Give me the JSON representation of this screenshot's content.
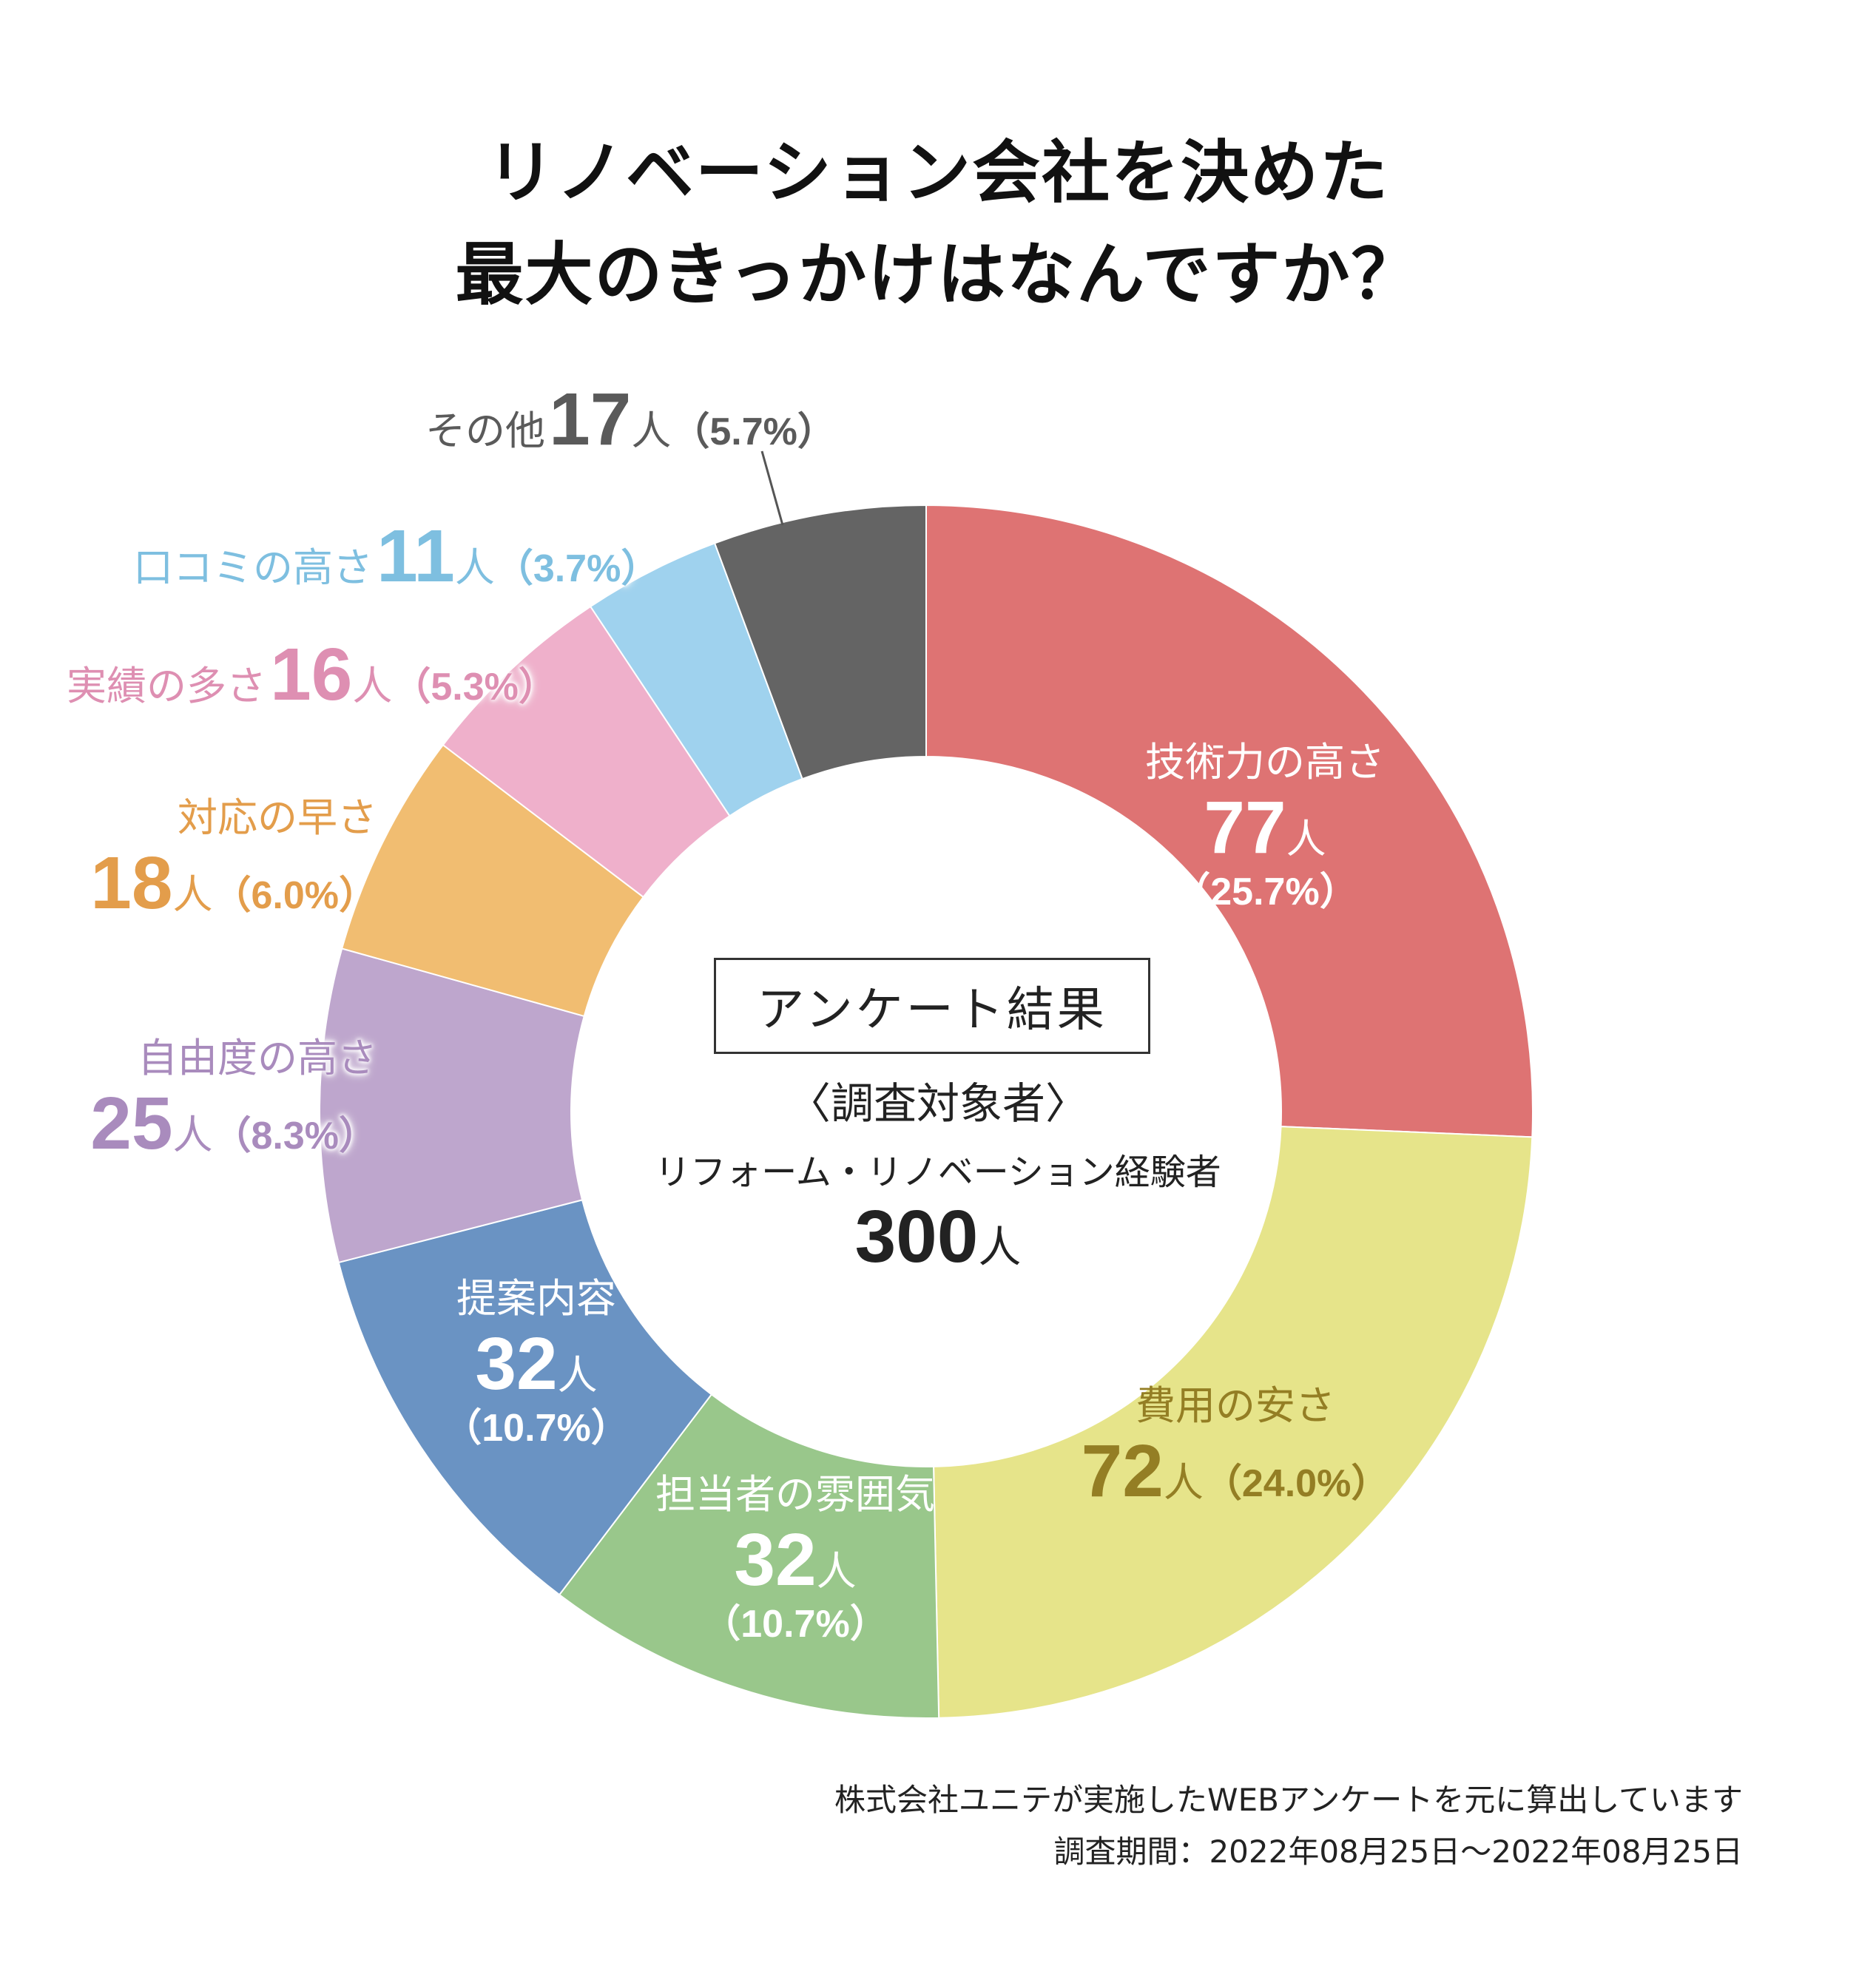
{
  "title": {
    "line1": "リノベーション会社を決めた",
    "line2": "最大のきっかけはなんですか？"
  },
  "chart_data": {
    "type": "pie",
    "donut": true,
    "title": "リノベーション会社を決めた 最大のきっかけはなんですか？",
    "total": 300,
    "unit": "人",
    "slices": [
      {
        "label": "技術力の高さ",
        "value": 77,
        "value_text": "77",
        "unit": "人",
        "percent": "（25.7%）",
        "color": "#de7373",
        "label_color": "#ffffff"
      },
      {
        "label": "費用の安さ",
        "value": 72,
        "value_text": "72",
        "unit": "人",
        "percent": "（24.0%）",
        "color": "#e6e48a",
        "label_color": "#947e24"
      },
      {
        "label": "担当者の雰囲気",
        "value": 32,
        "value_text": "32",
        "unit": "人",
        "percent": "（10.7%）",
        "color": "#99c78b",
        "label_color": "#ffffff"
      },
      {
        "label": "提案内容",
        "value": 32,
        "value_text": "32",
        "unit": "人",
        "percent": "（10.7%）",
        "color": "#6a93c3",
        "label_color": "#ffffff"
      },
      {
        "label": "自由度の高さ",
        "value": 25,
        "value_text": "25",
        "unit": "人",
        "percent": "（8.3%）",
        "color": "#bea6cd",
        "label_color": "#a98bbd"
      },
      {
        "label": "対応の早さ",
        "value": 18,
        "value_text": "18",
        "unit": "人",
        "percent": "（6.0%）",
        "color": "#f1bd71",
        "label_color": "#e39d4b"
      },
      {
        "label": "実績の多さ",
        "value": 16,
        "value_text": "16",
        "unit": "人",
        "percent": "（5.3%）",
        "color": "#efb0cb",
        "label_color": "#de8fb2"
      },
      {
        "label": "口コミの高さ",
        "value": 11,
        "value_text": "11",
        "unit": "人",
        "percent": "（3.7%）",
        "color": "#9fd2ee",
        "label_color": "#7ebfe0"
      },
      {
        "label": "その他",
        "value": 17,
        "value_text": "17",
        "unit": "人",
        "percent": "（5.7%）",
        "color": "#646464",
        "label_color": "#5a5a5a"
      }
    ]
  },
  "center": {
    "box_label": "アンケート結果",
    "subject_heading": "〈調査対象者〉",
    "subject": "リフォーム・リノベーション経験者",
    "count": "300",
    "count_unit": "人"
  },
  "footer": {
    "line1": "株式会社ユニテが実施したWEBアンケートを元に算出しています",
    "line2": "調査期間：2022年08月25日〜2022年08月25日"
  }
}
